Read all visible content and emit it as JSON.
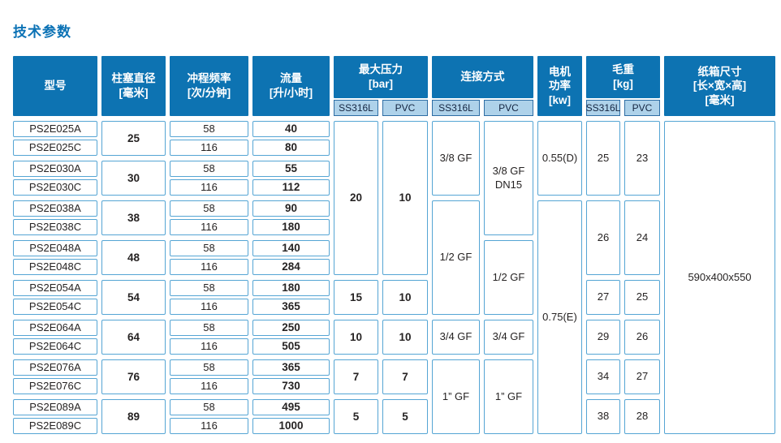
{
  "title": "技术参数",
  "colors": {
    "header_blue": "#0d73b2",
    "subheader_fill": "#aed2ea",
    "cell_border": "#55a5d4",
    "title_blue": "#0b72b5"
  },
  "table": {
    "headers": {
      "model": "型号",
      "diameter": "柱塞直径\n[毫米]",
      "frequency": "冲程频率\n[次/分钟]",
      "flow": "流量\n[升/小时]",
      "pressure": "最大压力\n[bar]",
      "connection": "连接方式",
      "motor": "电机\n功率\n[kw]",
      "weight": "毛重\n[kg]",
      "carton": "纸箱尺寸\n[长×宽×高]\n[毫米]",
      "sub_ss": "SS316L",
      "sub_pvc": "PVC"
    },
    "rows": [
      {
        "model": "PS2E025A",
        "freq": "58",
        "flow": "40"
      },
      {
        "model": "PS2E025C",
        "freq": "116",
        "flow": "80"
      },
      {
        "model": "PS2E030A",
        "freq": "58",
        "flow": "55"
      },
      {
        "model": "PS2E030C",
        "freq": "116",
        "flow": "112"
      },
      {
        "model": "PS2E038A",
        "freq": "58",
        "flow": "90"
      },
      {
        "model": "PS2E038C",
        "freq": "116",
        "flow": "180"
      },
      {
        "model": "PS2E048A",
        "freq": "58",
        "flow": "140"
      },
      {
        "model": "PS2E048C",
        "freq": "116",
        "flow": "284"
      },
      {
        "model": "PS2E054A",
        "freq": "58",
        "flow": "180"
      },
      {
        "model": "PS2E054C",
        "freq": "116",
        "flow": "365"
      },
      {
        "model": "PS2E064A",
        "freq": "58",
        "flow": "250"
      },
      {
        "model": "PS2E064C",
        "freq": "116",
        "flow": "505"
      },
      {
        "model": "PS2E076A",
        "freq": "58",
        "flow": "365"
      },
      {
        "model": "PS2E076C",
        "freq": "116",
        "flow": "730"
      },
      {
        "model": "PS2E089A",
        "freq": "58",
        "flow": "495"
      },
      {
        "model": "PS2E089C",
        "freq": "116",
        "flow": "1000"
      }
    ],
    "diameters": [
      "25",
      "30",
      "38",
      "48",
      "54",
      "64",
      "76",
      "89"
    ],
    "pressure_groups": [
      {
        "ss": "20",
        "pvc": "10"
      },
      {
        "ss": "15",
        "pvc": "10"
      },
      {
        "ss": "10",
        "pvc": "10"
      },
      {
        "ss": "7",
        "pvc": "7"
      },
      {
        "ss": "5",
        "pvc": "5"
      }
    ],
    "connection_ss_groups": [
      "3/8 GF",
      "1/2 GF",
      "3/4 GF",
      "1” GF"
    ],
    "connection_pvc_groups": [
      "3/8 GF\nDN15",
      "1/2 GF",
      "3/4 GF",
      "1” GF"
    ],
    "motor_groups": [
      "0.55(D)",
      "0.75(E)"
    ],
    "weight_groups": [
      {
        "ss": "25",
        "pvc": "23"
      },
      {
        "ss": "26",
        "pvc": "24"
      },
      {
        "ss": "27",
        "pvc": "25"
      },
      {
        "ss": "29",
        "pvc": "26"
      },
      {
        "ss": "34",
        "pvc": "27"
      },
      {
        "ss": "38",
        "pvc": "28"
      }
    ],
    "carton_size": "590x400x550"
  }
}
